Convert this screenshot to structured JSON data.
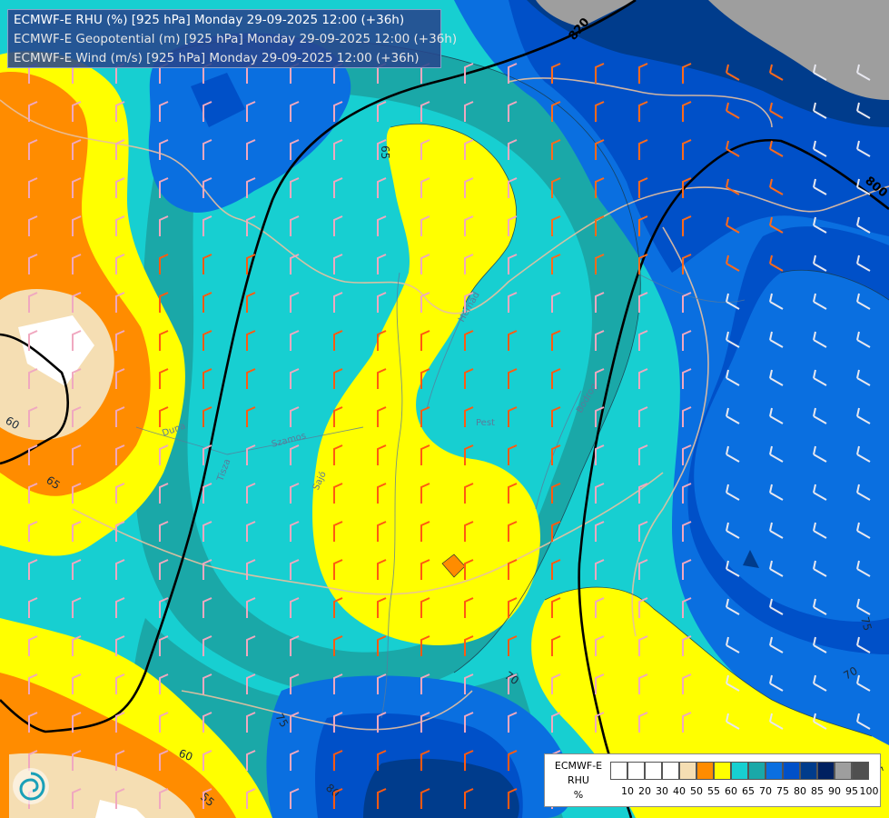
{
  "header": {
    "line1": "ECMWF-E RHU (%) [925 hPa] Monday 29-09-2025 12:00 (+36h)",
    "line2": "ECMWF-E Geopotential (m) [925 hPa] Monday 29-09-2025 12:00 (+36h)",
    "line3": "ECMWF-E Wind (m/s) [925 hPa] Monday 29-09-2025 12:00 (+36h)"
  },
  "legend": {
    "title_line1": "ECMWF-E",
    "title_line2": "RHU",
    "unit": "%",
    "classes": [
      {
        "value": "10",
        "color": "#ffffff"
      },
      {
        "value": "20",
        "color": "#ffffff"
      },
      {
        "value": "30",
        "color": "#ffffff"
      },
      {
        "value": "40",
        "color": "#ffffff"
      },
      {
        "value": "50",
        "color": "#f5deb3"
      },
      {
        "value": "55",
        "color": "#ff8c00"
      },
      {
        "value": "60",
        "color": "#ffff00"
      },
      {
        "value": "65",
        "color": "#17cfd1"
      },
      {
        "value": "70",
        "color": "#1aa8a8"
      },
      {
        "value": "75",
        "color": "#0a6fe0"
      },
      {
        "value": "80",
        "color": "#0050c8"
      },
      {
        "value": "85",
        "color": "#003c8c"
      },
      {
        "value": "90",
        "color": "#002060"
      },
      {
        "value": "95",
        "color": "#9e9e9e"
      },
      {
        "value": "100",
        "color": "#505050"
      }
    ]
  },
  "map": {
    "rhu_contour_labels": [
      "65",
      "60",
      "65",
      "70",
      "75",
      "75",
      "70",
      "65",
      "60",
      "55",
      "80"
    ],
    "geopotential_labels": [
      "820",
      "800"
    ],
    "place_labels": [
      "Hernád",
      "Sajó",
      "Bodrog",
      "Szamos",
      "Tisza",
      "Pest",
      "Duna"
    ],
    "colors": {
      "very_dry": "#ffffff",
      "dry": "#f5deb3",
      "orange": "#ff8c00",
      "yellow": "#ffff00",
      "cyan": "#17cfd1",
      "teal": "#1aa8a8",
      "blue": "#0a6fe0",
      "darkblue": "#0050c8",
      "navy": "#003c8c",
      "grey": "#9e9e9e"
    }
  }
}
